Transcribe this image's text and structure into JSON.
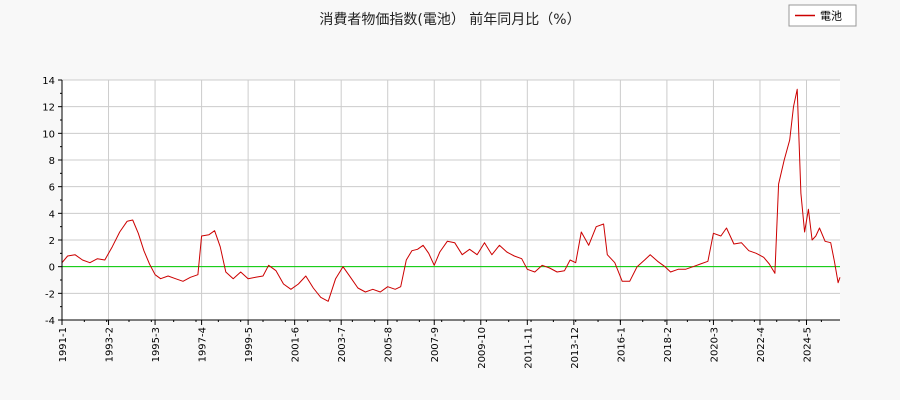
{
  "chart_data": {
    "type": "line",
    "title": "消費者物価指数(電池） 前年同月比（%）",
    "xlabel": "",
    "ylabel": "",
    "ylim": [
      -4,
      14
    ],
    "yticks": [
      -4,
      -2,
      0,
      2,
      4,
      6,
      8,
      10,
      12,
      14
    ],
    "x_tick_labels": [
      "1991-1",
      "1993-2",
      "1995-3",
      "1997-4",
      "1999-5",
      "2001-6",
      "2003-7",
      "2005-8",
      "2007-9",
      "2009-10",
      "2011-11",
      "2013-12",
      "2016-1",
      "2018-2",
      "2020-3",
      "2022-4",
      "2024-5"
    ],
    "grid": true,
    "legend_position": "top-right",
    "zero_line_color": "#00cc00",
    "series": [
      {
        "name": "電池",
        "color": "#cc0000",
        "points": [
          [
            "1991-01",
            0.3
          ],
          [
            "1991-04",
            0.8
          ],
          [
            "1991-08",
            0.9
          ],
          [
            "1991-12",
            0.5
          ],
          [
            "1992-04",
            0.3
          ],
          [
            "1992-08",
            0.6
          ],
          [
            "1992-12",
            0.5
          ],
          [
            "1993-04",
            1.5
          ],
          [
            "1993-08",
            2.6
          ],
          [
            "1993-12",
            3.4
          ],
          [
            "1994-03",
            3.5
          ],
          [
            "1994-06",
            2.5
          ],
          [
            "1994-09",
            1.2
          ],
          [
            "1994-12",
            0.2
          ],
          [
            "1995-03",
            -0.6
          ],
          [
            "1995-06",
            -0.9
          ],
          [
            "1995-10",
            -0.7
          ],
          [
            "1996-02",
            -0.9
          ],
          [
            "1996-06",
            -1.1
          ],
          [
            "1996-10",
            -0.8
          ],
          [
            "1997-02",
            -0.6
          ],
          [
            "1997-04",
            2.3
          ],
          [
            "1997-08",
            2.4
          ],
          [
            "1997-11",
            2.7
          ],
          [
            "1998-02",
            1.5
          ],
          [
            "1998-05",
            -0.4
          ],
          [
            "1998-09",
            -0.9
          ],
          [
            "1999-01",
            -0.4
          ],
          [
            "1999-05",
            -0.9
          ],
          [
            "1999-09",
            -0.8
          ],
          [
            "2000-01",
            -0.7
          ],
          [
            "2000-04",
            0.1
          ],
          [
            "2000-08",
            -0.3
          ],
          [
            "2000-12",
            -1.3
          ],
          [
            "2001-04",
            -1.7
          ],
          [
            "2001-08",
            -1.3
          ],
          [
            "2001-12",
            -0.7
          ],
          [
            "2002-04",
            -1.6
          ],
          [
            "2002-08",
            -2.3
          ],
          [
            "2002-12",
            -2.6
          ],
          [
            "2003-04",
            -0.9
          ],
          [
            "2003-08",
            0.0
          ],
          [
            "2003-12",
            -0.8
          ],
          [
            "2004-04",
            -1.6
          ],
          [
            "2004-08",
            -1.9
          ],
          [
            "2004-12",
            -1.7
          ],
          [
            "2005-04",
            -1.9
          ],
          [
            "2005-08",
            -1.5
          ],
          [
            "2005-12",
            -1.7
          ],
          [
            "2006-03",
            -1.5
          ],
          [
            "2006-06",
            0.5
          ],
          [
            "2006-09",
            1.2
          ],
          [
            "2006-12",
            1.3
          ],
          [
            "2007-03",
            1.6
          ],
          [
            "2007-06",
            1.0
          ],
          [
            "2007-09",
            0.1
          ],
          [
            "2007-12",
            1.1
          ],
          [
            "2008-04",
            1.9
          ],
          [
            "2008-08",
            1.8
          ],
          [
            "2008-12",
            0.9
          ],
          [
            "2009-04",
            1.3
          ],
          [
            "2009-08",
            0.9
          ],
          [
            "2009-12",
            1.8
          ],
          [
            "2010-04",
            0.9
          ],
          [
            "2010-08",
            1.6
          ],
          [
            "2010-12",
            1.1
          ],
          [
            "2011-04",
            0.8
          ],
          [
            "2011-08",
            0.6
          ],
          [
            "2011-11",
            -0.2
          ],
          [
            "2012-03",
            -0.4
          ],
          [
            "2012-07",
            0.1
          ],
          [
            "2012-11",
            -0.1
          ],
          [
            "2013-03",
            -0.4
          ],
          [
            "2013-07",
            -0.3
          ],
          [
            "2013-10",
            0.5
          ],
          [
            "2014-01",
            0.3
          ],
          [
            "2014-04",
            2.6
          ],
          [
            "2014-08",
            1.6
          ],
          [
            "2014-12",
            3.0
          ],
          [
            "2015-04",
            3.2
          ],
          [
            "2015-06",
            0.9
          ],
          [
            "2015-10",
            0.3
          ],
          [
            "2016-02",
            -1.1
          ],
          [
            "2016-06",
            -1.1
          ],
          [
            "2016-10",
            0.0
          ],
          [
            "2017-02",
            0.5
          ],
          [
            "2017-05",
            0.9
          ],
          [
            "2017-09",
            0.4
          ],
          [
            "2018-01",
            0.0
          ],
          [
            "2018-04",
            -0.4
          ],
          [
            "2018-08",
            -0.2
          ],
          [
            "2018-12",
            -0.2
          ],
          [
            "2019-04",
            0.0
          ],
          [
            "2019-08",
            0.2
          ],
          [
            "2019-12",
            0.4
          ],
          [
            "2020-03",
            2.5
          ],
          [
            "2020-07",
            2.3
          ],
          [
            "2020-10",
            2.9
          ],
          [
            "2021-02",
            1.7
          ],
          [
            "2021-06",
            1.8
          ],
          [
            "2021-10",
            1.2
          ],
          [
            "2022-02",
            1.0
          ],
          [
            "2022-06",
            0.7
          ],
          [
            "2022-09",
            0.2
          ],
          [
            "2022-12",
            -0.5
          ],
          [
            "2023-02",
            6.2
          ],
          [
            "2023-05",
            8.0
          ],
          [
            "2023-08",
            9.5
          ],
          [
            "2023-10",
            12.0
          ],
          [
            "2023-12",
            13.3
          ],
          [
            "2024-02",
            5.5
          ],
          [
            "2024-04",
            2.6
          ],
          [
            "2024-06",
            4.3
          ],
          [
            "2024-08",
            2.0
          ],
          [
            "2024-10",
            2.3
          ],
          [
            "2024-12",
            2.9
          ],
          [
            "2025-03",
            1.9
          ],
          [
            "2025-06",
            1.8
          ],
          [
            "2025-08",
            0.4
          ],
          [
            "2025-10",
            -1.2
          ],
          [
            "2025-11",
            -0.8
          ]
        ]
      }
    ]
  }
}
